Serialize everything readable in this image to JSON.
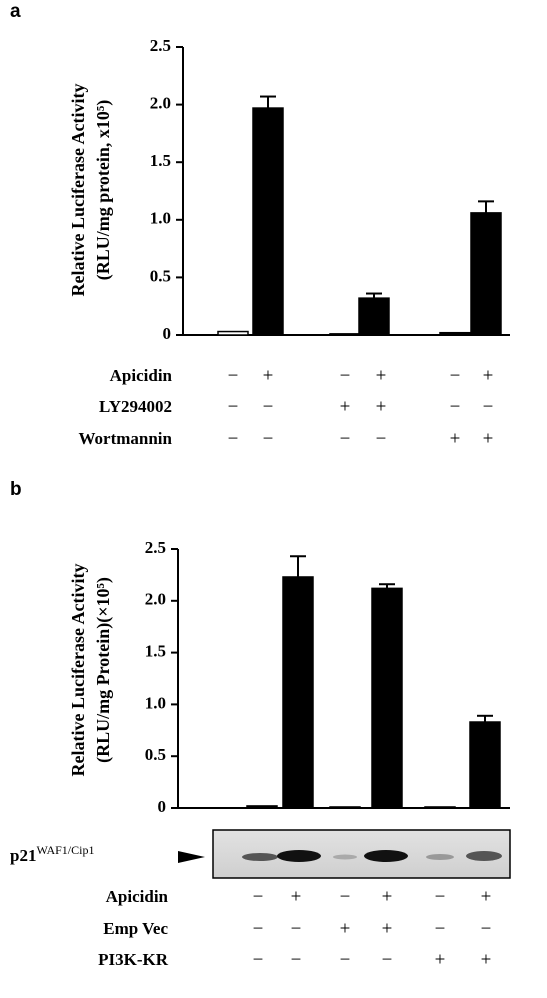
{
  "chart_data": [
    {
      "type": "bar",
      "label": "a",
      "ylabel": [
        "Relative Luciferase Activity",
        "(RLU/mg protein, x10⁵)"
      ],
      "values": [
        0.03,
        1.97,
        0.01,
        0.32,
        0.02,
        1.06
      ],
      "errors": [
        0,
        0.1,
        0,
        0.04,
        0,
        0.1
      ],
      "colors": [
        "#ffffff",
        "#000000",
        "#000000",
        "#000000",
        "#000000",
        "#000000"
      ],
      "ylim": [
        0,
        2.5
      ],
      "yticks": [
        0,
        0.5,
        {
          "value": 1,
          "label": "1.0"
        },
        1.5,
        {
          "value": 2,
          "label": "2.0"
        },
        2.5
      ],
      "conditions": [
        {
          "name": "Apicidin",
          "signs": [
            "−",
            "+",
            "−",
            "+",
            "−",
            "+"
          ]
        },
        {
          "name": "LY294002",
          "signs": [
            "−",
            "−",
            "+",
            "+",
            "−",
            "−"
          ]
        },
        {
          "name": "Wortmannin",
          "signs": [
            "−",
            "−",
            "−",
            "−",
            "+",
            "+"
          ]
        }
      ]
    },
    {
      "type": "bar",
      "label": "b",
      "ylabel": [
        "Relative Luciferase Activity",
        "(RLU/mg Protein)(×10⁵)"
      ],
      "values": [
        0.02,
        2.23,
        0.01,
        2.12,
        0.01,
        0.83
      ],
      "errors": [
        0,
        0.2,
        0,
        0.04,
        0,
        0.06
      ],
      "colors": [
        "#000000",
        "#000000",
        "#000000",
        "#000000",
        "#000000",
        "#000000"
      ],
      "ylim": [
        0,
        2.5
      ],
      "yticks": [
        0,
        0.5,
        {
          "value": 1,
          "label": "1.0"
        },
        1.5,
        {
          "value": 2,
          "label": "2.0"
        },
        2.5
      ],
      "blot": {
        "label": "p21",
        "label_superscript": "WAF1/Cip1"
      },
      "conditions": [
        {
          "name": "Apicidin",
          "signs": [
            "−",
            "+",
            "−",
            "+",
            "−",
            "+"
          ]
        },
        {
          "name": "Emp Vec",
          "signs": [
            "−",
            "−",
            "+",
            "+",
            "−",
            "−"
          ]
        },
        {
          "name": "PI3K-KR",
          "signs": [
            "−",
            "−",
            "−",
            "−",
            "+",
            "+"
          ]
        }
      ]
    }
  ]
}
